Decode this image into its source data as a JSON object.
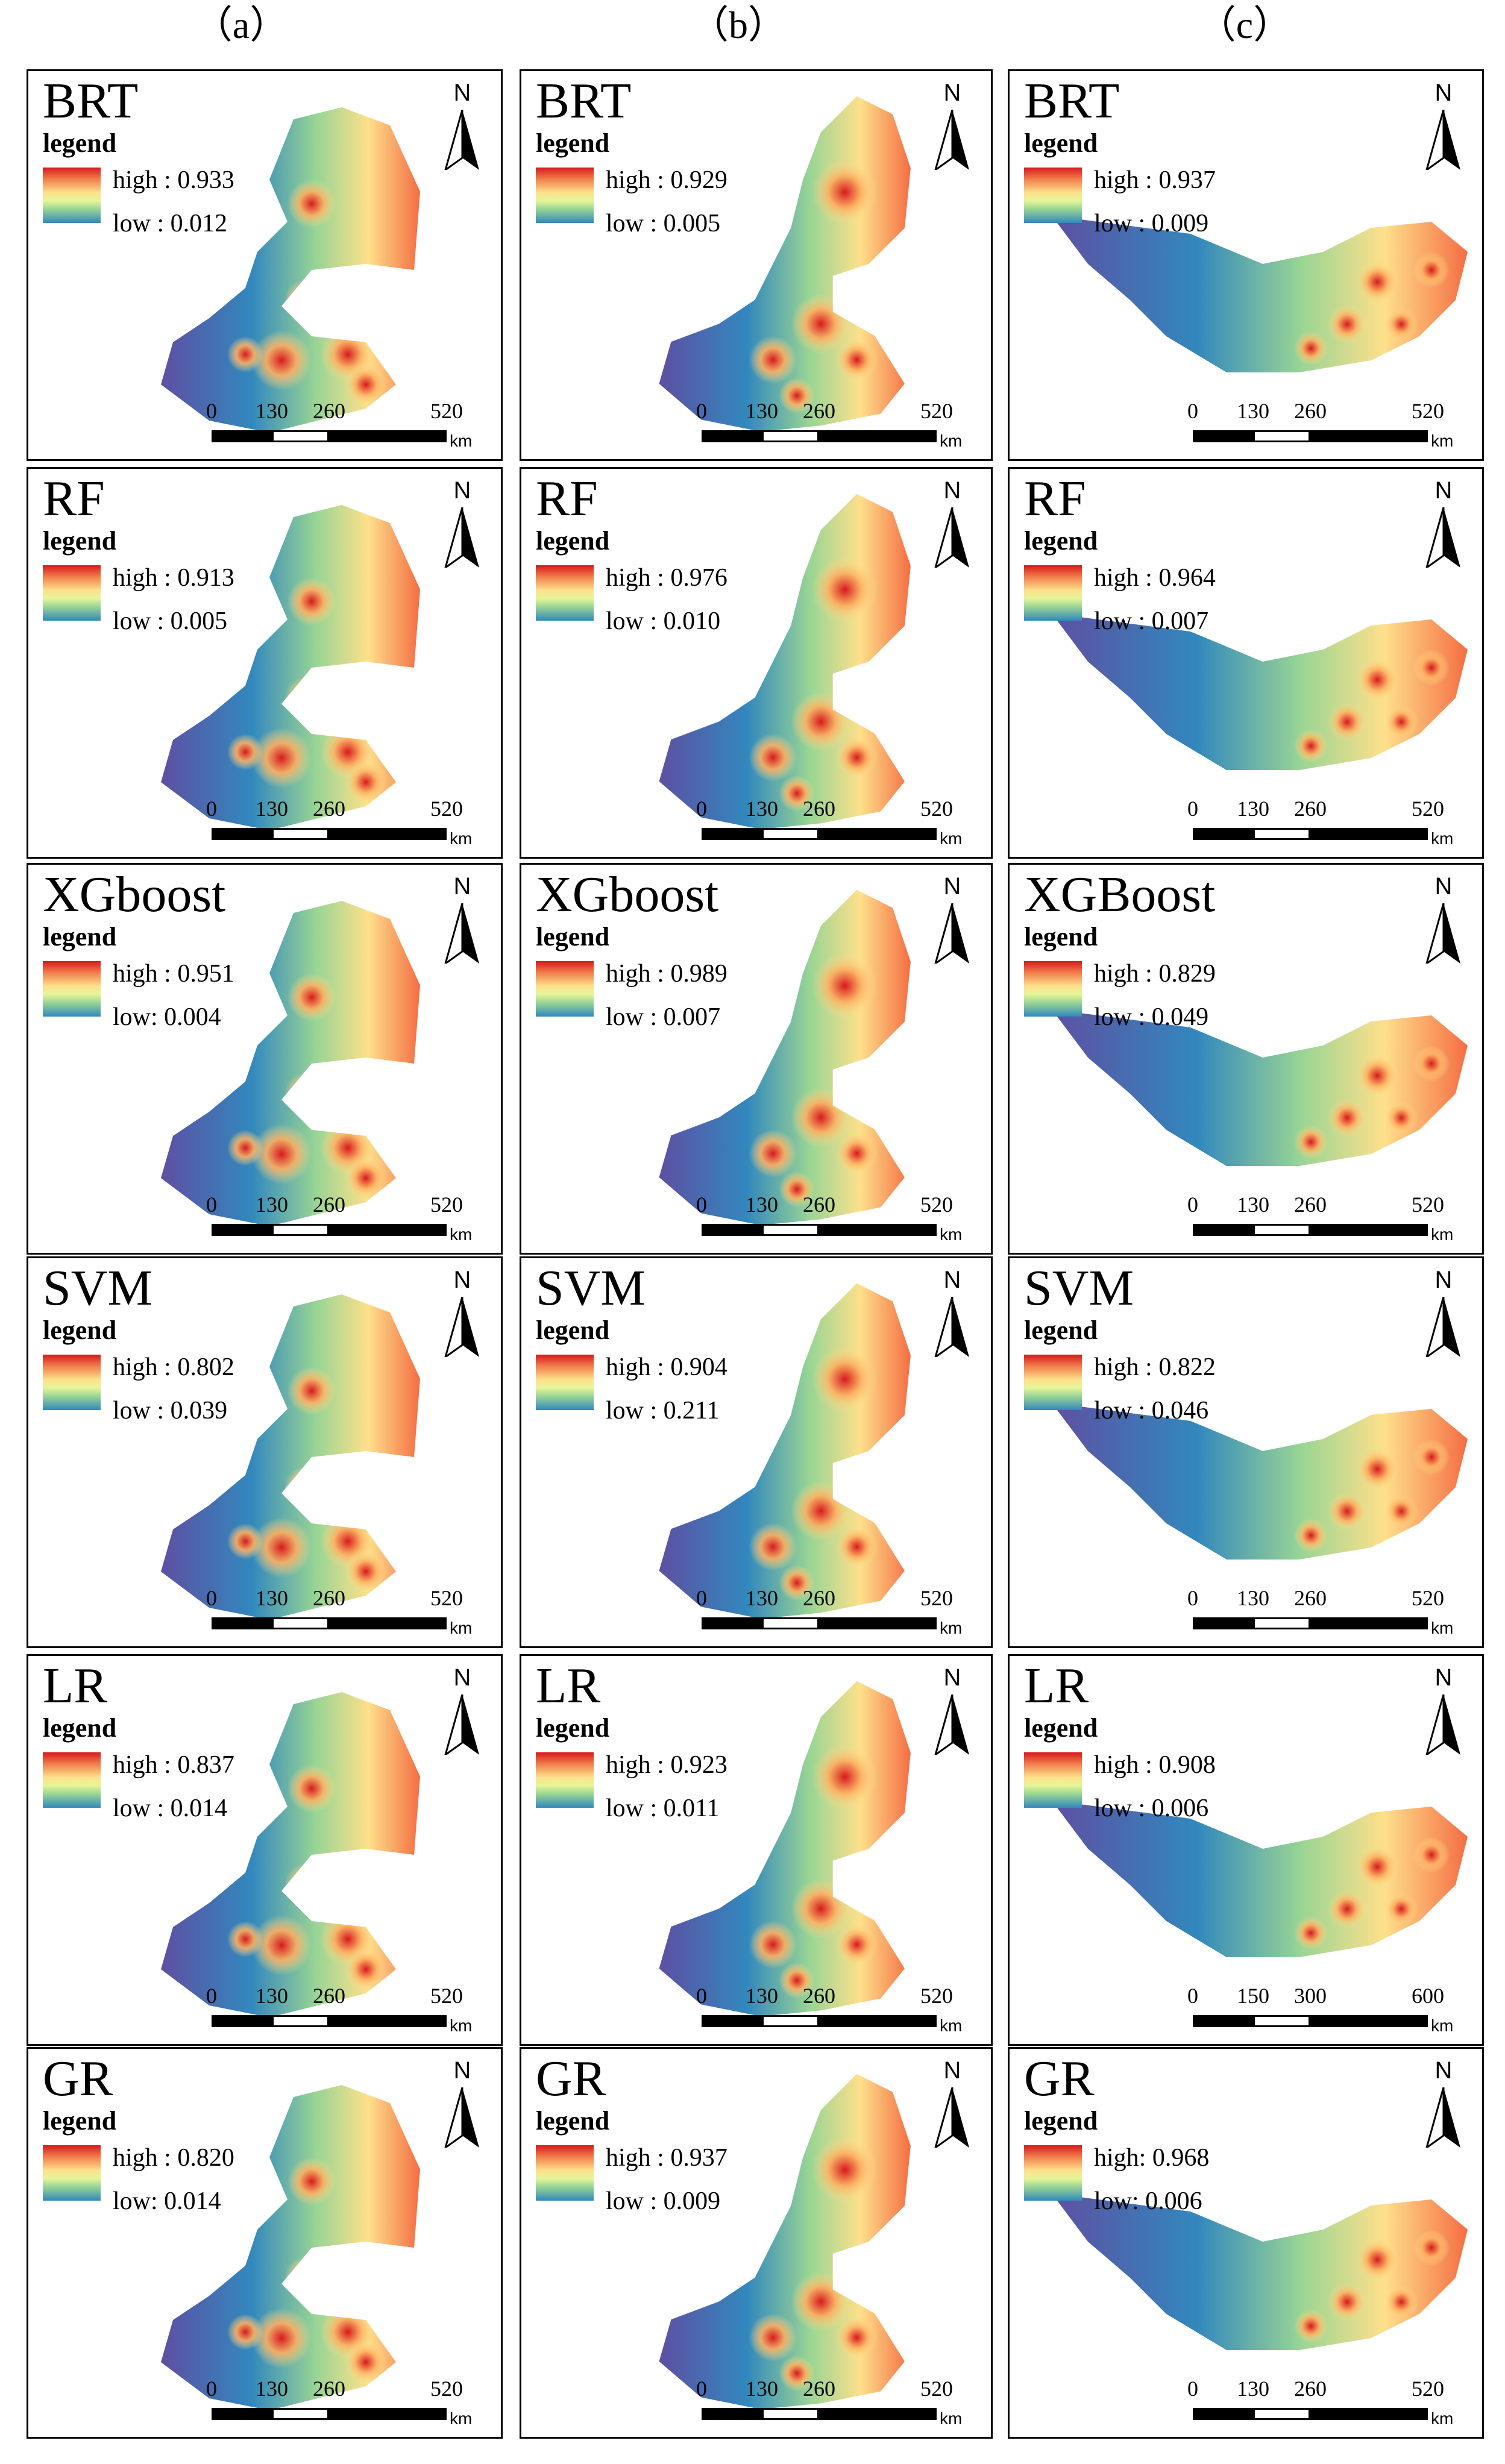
{
  "columns": [
    "（a）",
    "（b）",
    "（c）"
  ],
  "panels": [
    {
      "col": 0,
      "row": 0,
      "model": "BRT",
      "legend": "legend",
      "high": "high : 0.933",
      "low": "low : 0.012",
      "ticks": [
        "0",
        "130",
        "260",
        "520"
      ],
      "unit": "km"
    },
    {
      "col": 1,
      "row": 0,
      "model": "BRT",
      "legend": "legend",
      "high": "high : 0.929",
      "low": "low : 0.005",
      "ticks": [
        "0",
        "130",
        "260",
        "520"
      ],
      "unit": "km"
    },
    {
      "col": 2,
      "row": 0,
      "model": "BRT",
      "legend": "legend",
      "high": "high : 0.937",
      "low": "low : 0.009",
      "ticks": [
        "0",
        "130",
        "260",
        "520"
      ],
      "unit": "km"
    },
    {
      "col": 0,
      "row": 1,
      "model": "RF",
      "legend": "legend",
      "high": "high : 0.913",
      "low": "low : 0.005",
      "ticks": [
        "0",
        "130",
        "260",
        "520"
      ],
      "unit": "km"
    },
    {
      "col": 1,
      "row": 1,
      "model": "RF",
      "legend": "legend",
      "high": "high : 0.976",
      "low": "low : 0.010",
      "ticks": [
        "0",
        "130",
        "260",
        "520"
      ],
      "unit": "km"
    },
    {
      "col": 2,
      "row": 1,
      "model": "RF",
      "legend": "legend",
      "high": "high : 0.964",
      "low": "low : 0.007",
      "ticks": [
        "0",
        "130",
        "260",
        "520"
      ],
      "unit": "km"
    },
    {
      "col": 0,
      "row": 2,
      "model": "XGboost",
      "legend": "legend",
      "high": "high : 0.951",
      "low": "low: 0.004",
      "ticks": [
        "0",
        "130",
        "260",
        "520"
      ],
      "unit": "km"
    },
    {
      "col": 1,
      "row": 2,
      "model": "XGboost",
      "legend": "legend",
      "high": "high : 0.989",
      "low": "low : 0.007",
      "ticks": [
        "0",
        "130",
        "260",
        "520"
      ],
      "unit": "km"
    },
    {
      "col": 2,
      "row": 2,
      "model": "XGBoost",
      "legend": "legend",
      "high": "high : 0.829",
      "low": "low : 0.049",
      "ticks": [
        "0",
        "130",
        "260",
        "520"
      ],
      "unit": "km"
    },
    {
      "col": 0,
      "row": 3,
      "model": "SVM",
      "legend": "legend",
      "high": "high : 0.802",
      "low": "low : 0.039",
      "ticks": [
        "0",
        "130",
        "260",
        "520"
      ],
      "unit": "km"
    },
    {
      "col": 1,
      "row": 3,
      "model": "SVM",
      "legend": "legend",
      "high": "high : 0.904",
      "low": "low : 0.211",
      "ticks": [
        "0",
        "130",
        "260",
        "520"
      ],
      "unit": "km"
    },
    {
      "col": 2,
      "row": 3,
      "model": "SVM",
      "legend": "legend",
      "high": "high : 0.822",
      "low": "low : 0.046",
      "ticks": [
        "0",
        "130",
        "260",
        "520"
      ],
      "unit": "km"
    },
    {
      "col": 0,
      "row": 4,
      "model": "LR",
      "legend": "legend",
      "high": "high : 0.837",
      "low": "low : 0.014",
      "ticks": [
        "0",
        "130",
        "260",
        "520"
      ],
      "unit": "km"
    },
    {
      "col": 1,
      "row": 4,
      "model": "LR",
      "legend": "legend",
      "high": "high : 0.923",
      "low": "low : 0.011",
      "ticks": [
        "0",
        "130",
        "260",
        "520"
      ],
      "unit": "km"
    },
    {
      "col": 2,
      "row": 4,
      "model": "LR",
      "legend": "legend",
      "high": "high : 0.908",
      "low": "low : 0.006",
      "ticks": [
        "0",
        "150",
        "300",
        "600"
      ],
      "unit": "km"
    },
    {
      "col": 0,
      "row": 5,
      "model": "GR",
      "legend": "legend",
      "high": "high : 0.820",
      "low": "low: 0.014",
      "ticks": [
        "0",
        "130",
        "260",
        "520"
      ],
      "unit": "km"
    },
    {
      "col": 1,
      "row": 5,
      "model": "GR",
      "legend": "legend",
      "high": "high : 0.937",
      "low": "low : 0.009",
      "ticks": [
        "0",
        "130",
        "260",
        "520"
      ],
      "unit": "km"
    },
    {
      "col": 2,
      "row": 5,
      "model": "GR",
      "legend": "legend",
      "high": "high: 0.968",
      "low": "low: 0.006",
      "ticks": [
        "0",
        "130",
        "260",
        "520"
      ],
      "unit": "km"
    }
  ],
  "north_label": "N",
  "colors": {
    "high": "#d7191c",
    "mid": "#fee08b",
    "low": "#3288bd",
    "deep_low": "#5e4fa2"
  }
}
